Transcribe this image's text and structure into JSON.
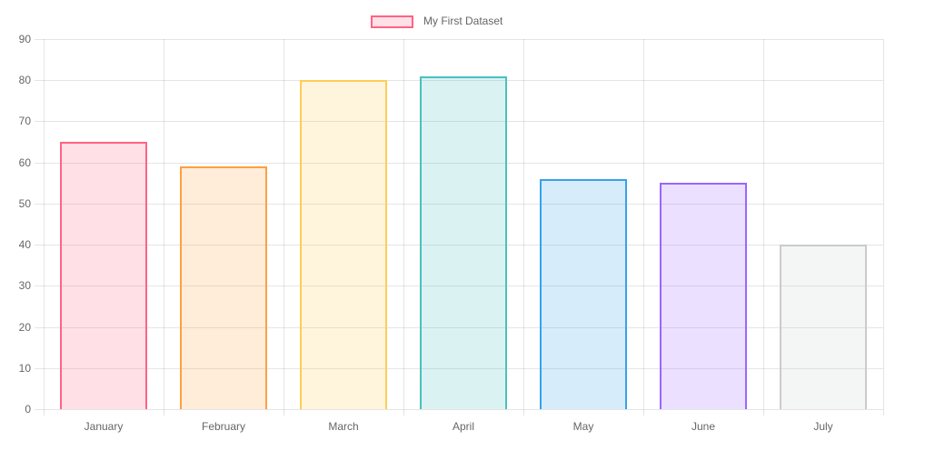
{
  "legend": {
    "position": "top",
    "items": [
      {
        "label": "My First Dataset"
      }
    ]
  },
  "colors": {
    "grid": "rgba(0,0,0,0.1)",
    "tick_text": "#666666",
    "background": "#ffffff"
  },
  "chart_data": {
    "type": "bar",
    "title": "",
    "xlabel": "",
    "ylabel": "",
    "categories": [
      "January",
      "February",
      "March",
      "April",
      "May",
      "June",
      "July"
    ],
    "series": [
      {
        "name": "My First Dataset",
        "values": [
          65,
          59,
          80,
          81,
          56,
          55,
          40
        ],
        "border_colors": [
          "rgb(255,99,132)",
          "rgb(255,159,64)",
          "rgb(255,205,86)",
          "rgb(75,192,192)",
          "rgb(54,162,235)",
          "rgb(153,102,255)",
          "rgb(201,203,207)"
        ],
        "fill_colors": [
          "rgba(255,99,132,0.2)",
          "rgba(255,159,64,0.2)",
          "rgba(255,205,86,0.2)",
          "rgba(75,192,192,0.2)",
          "rgba(54,162,235,0.2)",
          "rgba(153,102,255,0.2)",
          "rgba(201,203,207,0.2)"
        ]
      }
    ],
    "ylim": [
      0,
      90
    ],
    "yticks": [
      0,
      10,
      20,
      30,
      40,
      50,
      60,
      70,
      80,
      90
    ],
    "grid": true,
    "legend_position": "top"
  }
}
